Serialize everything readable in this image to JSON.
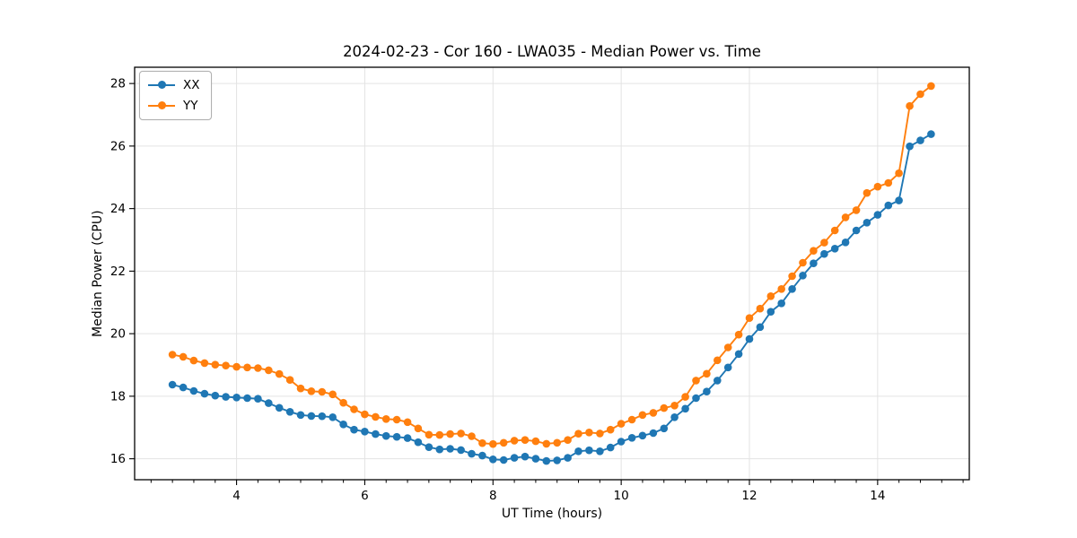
{
  "figure": {
    "background": "#ffffff"
  },
  "legend": {
    "items": [
      {
        "label": "XX",
        "color": "#1f77b4"
      },
      {
        "label": "YY",
        "color": "#ff7f0e"
      }
    ]
  },
  "style": {
    "grid_color": "#e3e3e3",
    "spine_color": "#000000",
    "tick_color": "#000000",
    "tick_label_color": "#000000"
  },
  "chart_data": {
    "type": "line",
    "title": "2024-02-23 - Cor 160 - LWA035 - Median Power vs. Time",
    "xlabel": "UT Time (hours)",
    "ylabel": "Median Power (CPU)",
    "xlim": [
      2.41,
      15.43
    ],
    "ylim": [
      15.33,
      28.52
    ],
    "xticks_major": [
      4,
      6,
      8,
      10,
      12,
      14
    ],
    "xtick_minor_step": 0.33333,
    "yticks_major": [
      16,
      18,
      20,
      22,
      24,
      26,
      28
    ],
    "grid": true,
    "legend_position": "upper-left",
    "marker": "circle",
    "x": [
      3.0,
      3.167,
      3.333,
      3.5,
      3.667,
      3.833,
      4.0,
      4.167,
      4.333,
      4.5,
      4.667,
      4.833,
      5.0,
      5.167,
      5.333,
      5.5,
      5.667,
      5.833,
      6.0,
      6.167,
      6.333,
      6.5,
      6.667,
      6.833,
      7.0,
      7.167,
      7.333,
      7.5,
      7.667,
      7.833,
      8.0,
      8.167,
      8.333,
      8.5,
      8.667,
      8.833,
      9.0,
      9.167,
      9.333,
      9.5,
      9.667,
      9.833,
      10.0,
      10.167,
      10.333,
      10.5,
      10.667,
      10.833,
      11.0,
      11.167,
      11.333,
      11.5,
      11.667,
      11.833,
      12.0,
      12.167,
      12.333,
      12.5,
      12.667,
      12.833,
      13.0,
      13.167,
      13.333,
      13.5,
      13.667,
      13.833,
      14.0,
      14.167,
      14.333,
      14.5,
      14.667,
      14.833
    ],
    "series": [
      {
        "name": "XX",
        "color": "#1f77b4",
        "values": [
          18.37,
          18.28,
          18.17,
          18.08,
          18.02,
          17.98,
          17.96,
          17.94,
          17.92,
          17.78,
          17.63,
          17.5,
          17.4,
          17.37,
          17.36,
          17.33,
          17.1,
          16.93,
          16.87,
          16.79,
          16.73,
          16.7,
          16.66,
          16.53,
          16.37,
          16.3,
          16.32,
          16.28,
          16.16,
          16.1,
          15.98,
          15.96,
          16.03,
          16.07,
          16.0,
          15.93,
          15.95,
          16.03,
          16.24,
          16.27,
          16.24,
          16.36,
          16.55,
          16.67,
          16.74,
          16.82,
          16.97,
          17.33,
          17.6,
          17.94,
          18.15,
          18.5,
          18.92,
          19.35,
          19.83,
          20.21,
          20.7,
          20.97,
          21.43,
          21.86,
          22.25,
          22.55,
          22.72,
          22.92,
          23.3,
          23.55,
          23.8,
          24.1,
          24.26,
          25.99,
          26.18,
          26.38
        ]
      },
      {
        "name": "YY",
        "color": "#ff7f0e",
        "values": [
          19.33,
          19.26,
          19.14,
          19.06,
          19.01,
          18.98,
          18.94,
          18.92,
          18.9,
          18.83,
          18.71,
          18.52,
          18.25,
          18.16,
          18.14,
          18.06,
          17.79,
          17.58,
          17.42,
          17.34,
          17.27,
          17.25,
          17.17,
          16.97,
          16.77,
          16.76,
          16.79,
          16.81,
          16.72,
          16.5,
          16.47,
          16.51,
          16.58,
          16.6,
          16.56,
          16.48,
          16.51,
          16.6,
          16.8,
          16.84,
          16.81,
          16.93,
          17.12,
          17.25,
          17.4,
          17.47,
          17.62,
          17.7,
          17.98,
          18.5,
          18.72,
          19.15,
          19.56,
          19.97,
          20.5,
          20.8,
          21.2,
          21.43,
          21.84,
          22.27,
          22.65,
          22.91,
          23.3,
          23.72,
          23.95,
          24.5,
          24.7,
          24.82,
          25.13,
          27.28,
          27.66,
          27.92
        ]
      }
    ]
  }
}
